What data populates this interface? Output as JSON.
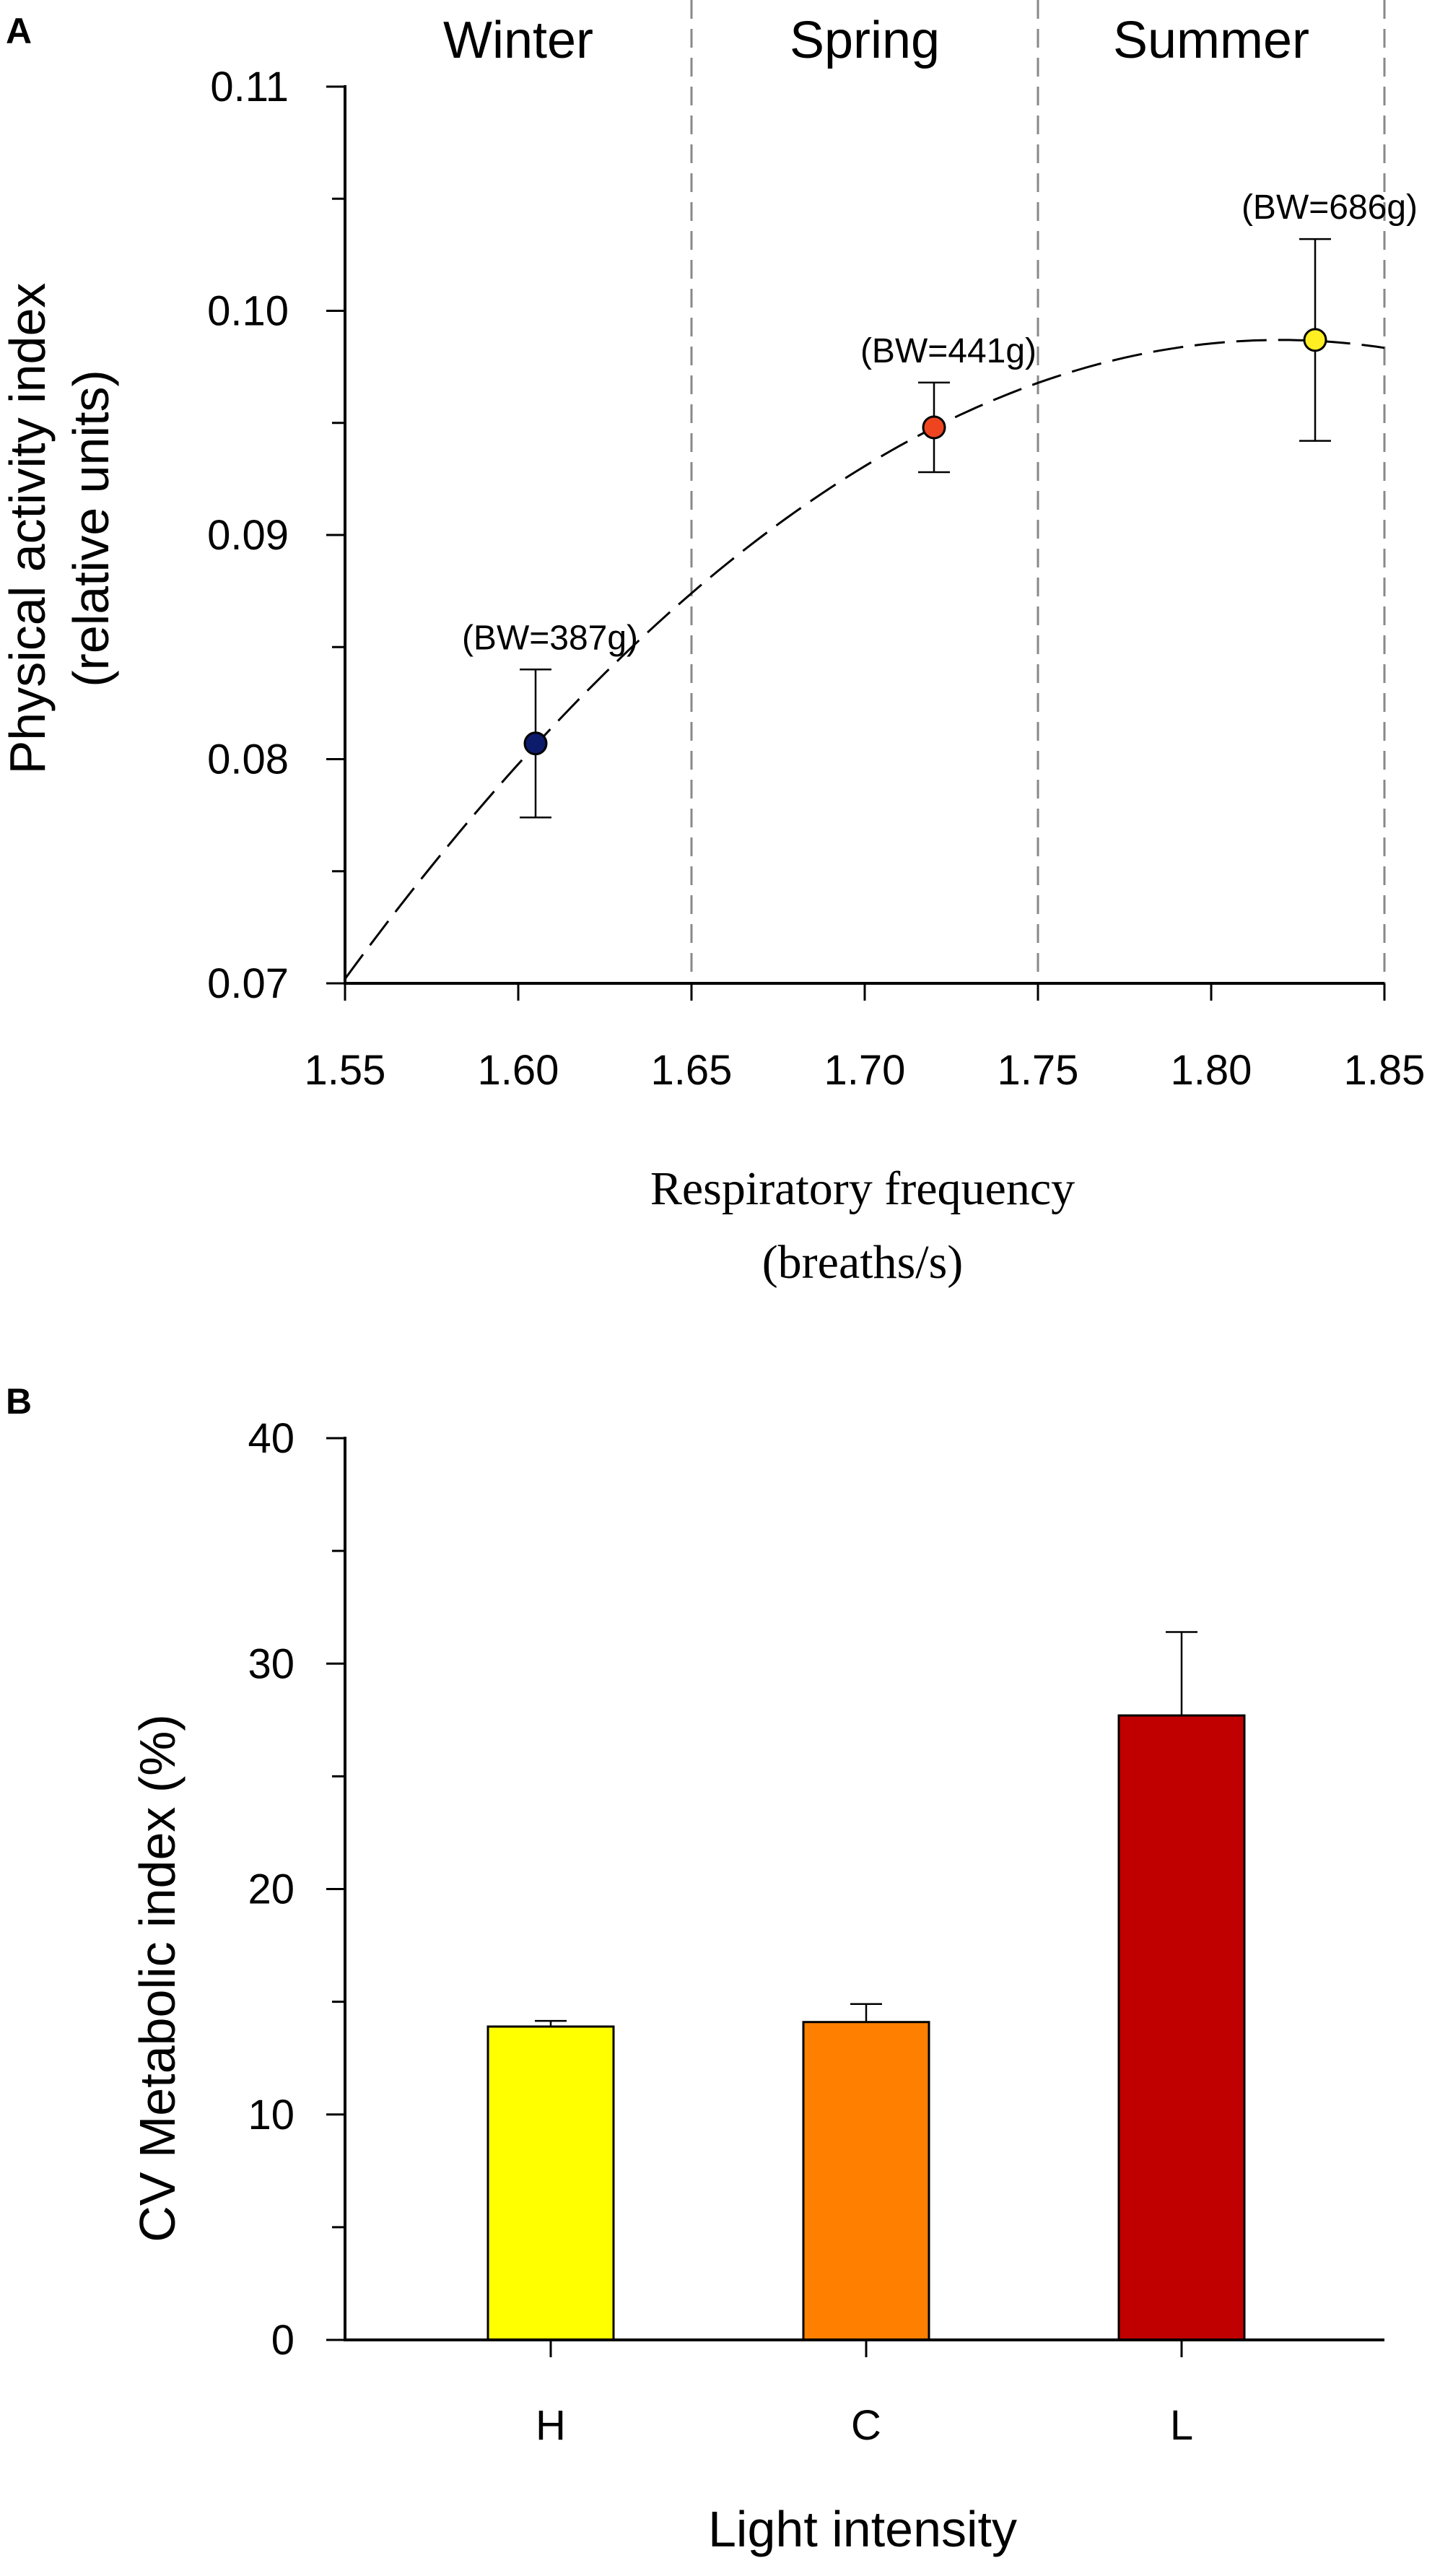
{
  "chart_data": [
    {
      "panel_label": "A",
      "type": "scatter",
      "xlabel_line1": "Respiratory frequency",
      "xlabel_line2": "(breaths/s)",
      "ylabel_line1": "Physical activity index",
      "ylabel_line2": "(relative units)",
      "xlim": [
        1.55,
        1.85
      ],
      "ylim": [
        0.07,
        0.11
      ],
      "x_ticks": [
        "1.55",
        "1.60",
        "1.65",
        "1.70",
        "1.75",
        "1.80",
        "1.85"
      ],
      "y_ticks": [
        "0.07",
        "0.08",
        "0.09",
        "0.10",
        "0.11"
      ],
      "season_dividers": [
        1.65,
        1.75,
        1.85
      ],
      "seasons": [
        {
          "label": "Winter",
          "x": 1.6
        },
        {
          "label": "Spring",
          "x": 1.7
        },
        {
          "label": "Summer",
          "x": 1.8
        }
      ],
      "points": [
        {
          "x": 1.605,
          "y": 0.0807,
          "err": 0.0033,
          "label": "(BW=387g)",
          "color": "#0d1b6b"
        },
        {
          "x": 1.72,
          "y": 0.0948,
          "err": 0.002,
          "label": "(BW=441g)",
          "color": "#ee4520"
        },
        {
          "x": 1.83,
          "y": 0.0987,
          "err": 0.0045,
          "label": "(BW=686g)",
          "color": "#ffee22"
        }
      ],
      "fit_curve": {
        "x_vertex": 1.82,
        "y_vertex": 0.0987,
        "y_at_155": 0.0702,
        "style": "dashed"
      },
      "grid": false
    },
    {
      "panel_label": "B",
      "type": "bar",
      "xlabel": "Light intensity",
      "ylabel": "CV Metabolic index (%)",
      "ylim": [
        0,
        40
      ],
      "y_ticks": [
        "0",
        "10",
        "20",
        "30",
        "40"
      ],
      "categories": [
        "H",
        "C",
        "L"
      ],
      "values": [
        13.9,
        14.1,
        27.7
      ],
      "errors": [
        0.25,
        0.8,
        3.7
      ],
      "colors": [
        "#ffff00",
        "#ff8000",
        "#c00000"
      ],
      "grid": false
    }
  ]
}
